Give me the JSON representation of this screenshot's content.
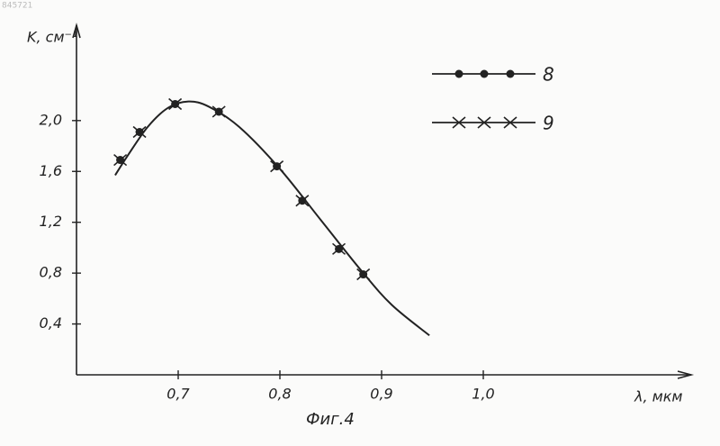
{
  "document_number": "845721",
  "chart_data": {
    "type": "line",
    "y_label": "K, см⁻¹",
    "x_label": "λ, мкм",
    "caption": "Фиг.4",
    "xlim": [
      0.6,
      1.2
    ],
    "ylim": [
      0,
      2.75
    ],
    "xticks": [
      {
        "value": 0.7,
        "label": "0,7"
      },
      {
        "value": 0.8,
        "label": "0,8"
      },
      {
        "value": 0.9,
        "label": "0,9"
      },
      {
        "value": 1.0,
        "label": "1,0"
      }
    ],
    "yticks": [
      {
        "value": 0.4,
        "label": "0,4"
      },
      {
        "value": 0.8,
        "label": "0,8"
      },
      {
        "value": 1.2,
        "label": "1,2"
      },
      {
        "value": 1.6,
        "label": "1,6"
      },
      {
        "value": 2.0,
        "label": "2,0"
      }
    ],
    "color": "#222222",
    "curve": {
      "x": [
        0.638,
        0.65,
        0.67,
        0.69,
        0.71,
        0.73,
        0.76,
        0.8,
        0.84,
        0.88,
        0.91,
        0.947
      ],
      "values": [
        1.57,
        1.72,
        1.95,
        2.1,
        2.15,
        2.11,
        1.95,
        1.62,
        1.22,
        0.82,
        0.55,
        0.31
      ]
    },
    "series": [
      {
        "name": "8",
        "marker": "dot",
        "x": [
          0.643,
          0.662,
          0.697,
          0.74,
          0.797,
          0.822,
          0.858,
          0.882
        ],
        "values": [
          1.69,
          1.91,
          2.13,
          2.07,
          1.64,
          1.37,
          0.99,
          0.79
        ]
      },
      {
        "name": "9",
        "marker": "cross",
        "x": [
          0.643,
          0.662,
          0.697,
          0.74,
          0.797,
          0.822,
          0.858,
          0.882
        ],
        "values": [
          1.69,
          1.91,
          2.13,
          2.07,
          1.64,
          1.37,
          0.99,
          0.79
        ]
      }
    ]
  }
}
